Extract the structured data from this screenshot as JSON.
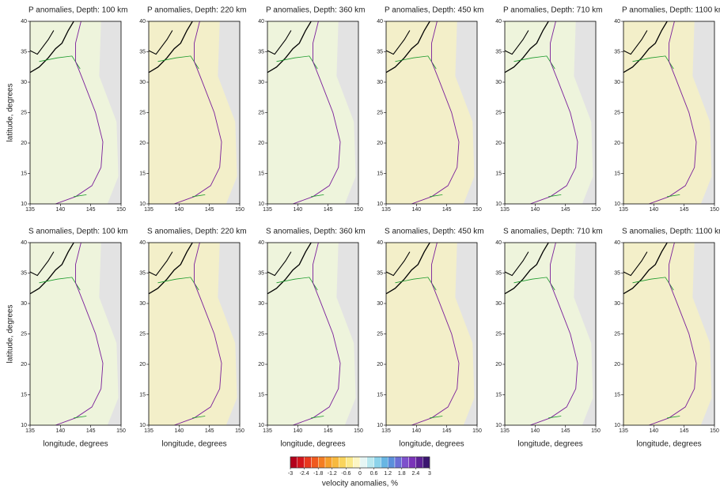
{
  "chart_data": [
    {
      "type": "map",
      "title": "P anomalies, Depth: 100 km",
      "ylabel": "latitude, degrees",
      "xlim": [
        135,
        150
      ],
      "ylim": [
        10,
        40
      ],
      "xticks": [
        135,
        140,
        145,
        150
      ],
      "yticks": [
        10,
        15,
        20,
        25,
        30,
        35,
        40
      ]
    },
    {
      "type": "map",
      "title": "P anomalies, Depth: 220 km",
      "xlim": [
        135,
        150
      ],
      "ylim": [
        10,
        40
      ],
      "xticks": [
        135,
        140,
        145,
        150
      ],
      "yticks": [
        10,
        15,
        20,
        25,
        30,
        35,
        40
      ]
    },
    {
      "type": "map",
      "title": "P anomalies, Depth: 360 km",
      "xlim": [
        135,
        150
      ],
      "ylim": [
        10,
        40
      ],
      "xticks": [
        135,
        140,
        145,
        150
      ],
      "yticks": [
        10,
        15,
        20,
        25,
        30,
        35,
        40
      ]
    },
    {
      "type": "map",
      "title": "P anomalies, Depth: 450 km",
      "xlim": [
        135,
        150
      ],
      "ylim": [
        10,
        40
      ],
      "xticks": [
        135,
        140,
        145,
        150
      ],
      "yticks": [
        10,
        15,
        20,
        25,
        30,
        35,
        40
      ]
    },
    {
      "type": "map",
      "title": "P anomalies, Depth: 710 km",
      "xlim": [
        135,
        150
      ],
      "ylim": [
        10,
        40
      ],
      "xticks": [
        135,
        140,
        145,
        150
      ],
      "yticks": [
        10,
        15,
        20,
        25,
        30,
        35,
        40
      ]
    },
    {
      "type": "map",
      "title": "P anomalies, Depth: 1100 km",
      "xlim": [
        135,
        150
      ],
      "ylim": [
        10,
        40
      ],
      "xticks": [
        135,
        140,
        145,
        150
      ],
      "yticks": [
        10,
        15,
        20,
        25,
        30,
        35,
        40
      ]
    },
    {
      "type": "map",
      "title": "S anomalies, Depth: 100 km",
      "ylabel": "latitude, degrees",
      "xlabel": "longitude, degrees",
      "xlim": [
        135,
        150
      ],
      "ylim": [
        10,
        40
      ],
      "xticks": [
        135,
        140,
        145,
        150
      ],
      "yticks": [
        10,
        15,
        20,
        25,
        30,
        35,
        40
      ]
    },
    {
      "type": "map",
      "title": "S anomalies, Depth: 220 km",
      "xlabel": "longitude, degrees",
      "xlim": [
        135,
        150
      ],
      "ylim": [
        10,
        40
      ],
      "xticks": [
        135,
        140,
        145,
        150
      ],
      "yticks": [
        10,
        15,
        20,
        25,
        30,
        35,
        40
      ]
    },
    {
      "type": "map",
      "title": "S anomalies, Depth: 360 km",
      "xlabel": "longitude, degrees",
      "xlim": [
        135,
        150
      ],
      "ylim": [
        10,
        40
      ],
      "xticks": [
        135,
        140,
        145,
        150
      ],
      "yticks": [
        10,
        15,
        20,
        25,
        30,
        35,
        40
      ]
    },
    {
      "type": "map",
      "title": "S anomalies, Depth: 450 km",
      "xlabel": "longitude, degrees",
      "xlim": [
        135,
        150
      ],
      "ylim": [
        10,
        40
      ],
      "xticks": [
        135,
        140,
        145,
        150
      ],
      "yticks": [
        10,
        15,
        20,
        25,
        30,
        35,
        40
      ]
    },
    {
      "type": "map",
      "title": "S anomalies, Depth: 710 km",
      "xlabel": "longitude, degrees",
      "xlim": [
        135,
        150
      ],
      "ylim": [
        10,
        40
      ],
      "xticks": [
        135,
        140,
        145,
        150
      ],
      "yticks": [
        10,
        15,
        20,
        25,
        30,
        35,
        40
      ]
    },
    {
      "type": "map",
      "title": "S anomalies, Depth: 1100 km",
      "xlabel": "longitude, degrees",
      "xlim": [
        135,
        150
      ],
      "ylim": [
        10,
        40
      ],
      "xticks": [
        135,
        140,
        145,
        150
      ],
      "yticks": [
        10,
        15,
        20,
        25,
        30,
        35,
        40
      ]
    },
    {
      "type": "colorbar",
      "label": "velocity anomalies, %",
      "xlim": [
        -3,
        3
      ],
      "bins": [
        -3,
        -2.7,
        -2.4,
        -2.1,
        -1.8,
        -1.5,
        -1.2,
        -0.9,
        -0.6,
        -0.3,
        0,
        0.3,
        0.6,
        0.9,
        1.2,
        1.5,
        1.8,
        2.1,
        2.4,
        2.7,
        3
      ],
      "colors": [
        "#b3001b",
        "#d4151c",
        "#e8381e",
        "#f05a1f",
        "#f47d22",
        "#f59e2a",
        "#f7b93f",
        "#f9d45c",
        "#fbe98a",
        "#fdf6c3",
        "#e6f6f4",
        "#b9e8ef",
        "#8cd3ea",
        "#68b6e3",
        "#5a8fdb",
        "#6a6fd6",
        "#7d50cc",
        "#7a33b8",
        "#5e2296",
        "#3b1670"
      ],
      "xticks": [
        -3,
        -2.4,
        -1.8,
        -1.2,
        -0.6,
        0,
        0.6,
        1.2,
        1.8,
        2.4,
        3
      ]
    }
  ]
}
